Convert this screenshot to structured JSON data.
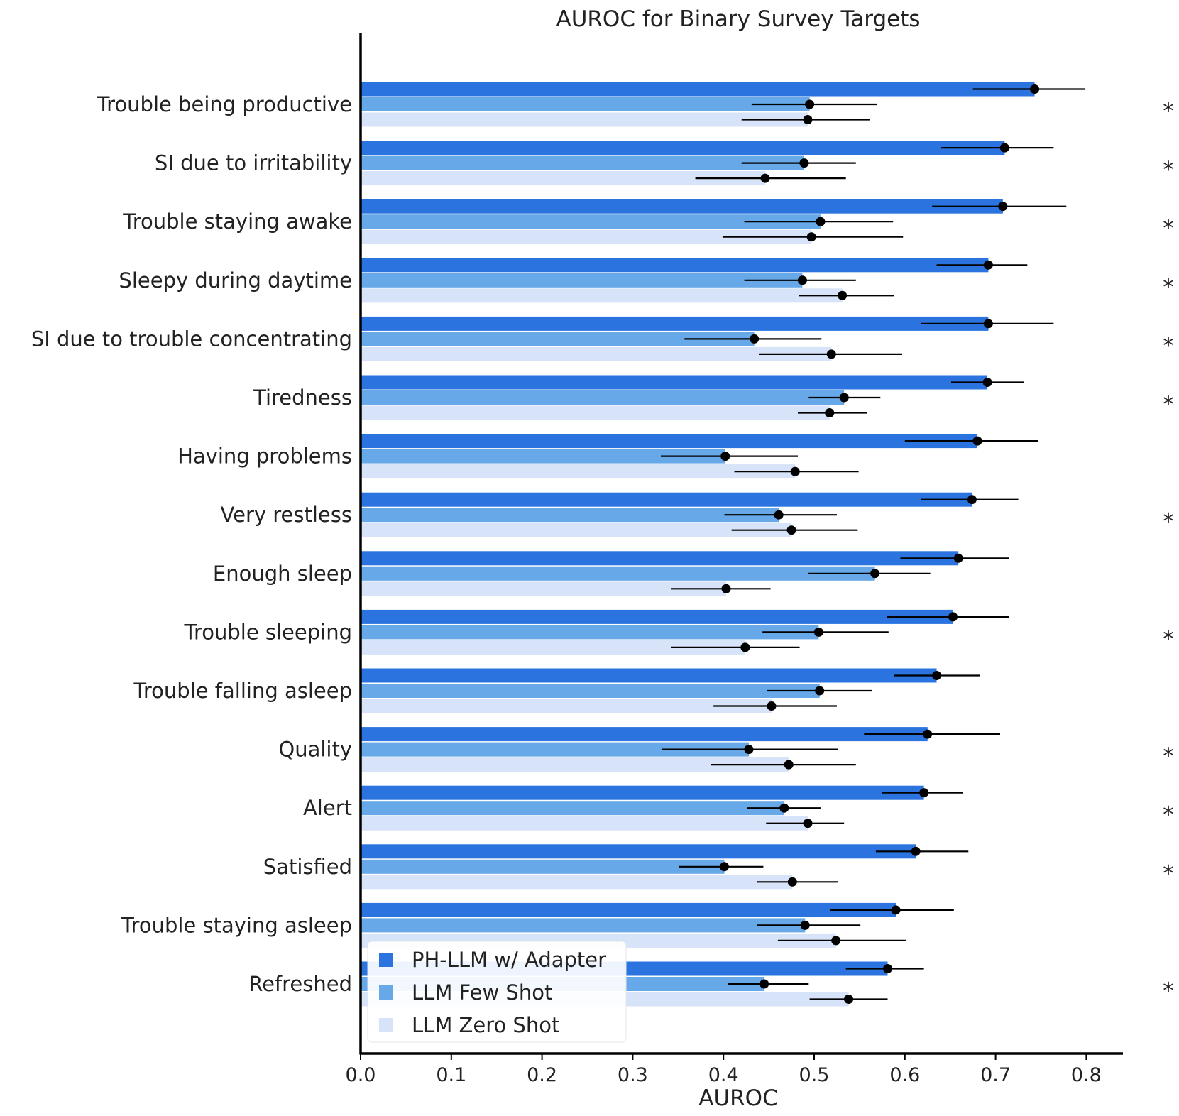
{
  "chart_data": {
    "type": "bar",
    "orientation": "horizontal",
    "title": "AUROC for Binary Survey Targets",
    "xlabel": "AUROC",
    "ylabel": "",
    "xlim": [
      0.0,
      0.84
    ],
    "xticks": [
      "0.0",
      "0.1",
      "0.2",
      "0.3",
      "0.4",
      "0.5",
      "0.6",
      "0.7",
      "0.8"
    ],
    "grid": false,
    "legend_position": "bottom-left",
    "categories": [
      "Trouble being productive",
      "SI due to irritability",
      "Trouble staying awake",
      "Sleepy during daytime",
      "SI due to trouble concentrating",
      "Tiredness",
      "Having problems",
      "Very restless",
      "Enough sleep",
      "Trouble sleeping",
      "Trouble falling asleep",
      "Quality",
      "Alert",
      "Satisfied",
      "Trouble staying asleep",
      "Refreshed"
    ],
    "significance_marker": "*",
    "significant": [
      true,
      true,
      true,
      true,
      true,
      true,
      false,
      true,
      false,
      true,
      false,
      true,
      true,
      true,
      false,
      true
    ],
    "series": [
      {
        "name": "PH-LLM w/ Adapter",
        "color": "#2b74df",
        "values": [
          0.743,
          0.71,
          0.708,
          0.692,
          0.692,
          0.691,
          0.68,
          0.674,
          0.659,
          0.653,
          0.635,
          0.625,
          0.621,
          0.612,
          0.59,
          0.581
        ],
        "ci_low": [
          0.675,
          0.64,
          0.63,
          0.635,
          0.618,
          0.651,
          0.6,
          0.618,
          0.595,
          0.58,
          0.588,
          0.555,
          0.575,
          0.568,
          0.518,
          0.535
        ],
        "ci_high": [
          0.799,
          0.764,
          0.778,
          0.735,
          0.764,
          0.731,
          0.747,
          0.725,
          0.715,
          0.715,
          0.683,
          0.705,
          0.664,
          0.67,
          0.654,
          0.621
        ]
      },
      {
        "name": "LLM Few Shot",
        "color": "#66a8e8",
        "values": [
          0.495,
          0.489,
          0.507,
          0.487,
          0.434,
          0.533,
          0.402,
          0.461,
          0.567,
          0.505,
          0.506,
          0.428,
          0.467,
          0.401,
          0.49,
          0.445
        ],
        "ci_low": [
          0.431,
          0.42,
          0.423,
          0.423,
          0.357,
          0.494,
          0.331,
          0.401,
          0.493,
          0.443,
          0.448,
          0.332,
          0.426,
          0.351,
          0.437,
          0.405
        ],
        "ci_high": [
          0.569,
          0.546,
          0.587,
          0.546,
          0.508,
          0.573,
          0.482,
          0.525,
          0.628,
          0.582,
          0.564,
          0.526,
          0.507,
          0.444,
          0.551,
          0.494
        ]
      },
      {
        "name": "LLM Zero Shot",
        "color": "#d6e3f8",
        "values": [
          0.493,
          0.446,
          0.497,
          0.531,
          0.519,
          0.517,
          0.479,
          0.475,
          0.403,
          0.424,
          0.453,
          0.472,
          0.493,
          0.476,
          0.524,
          0.538
        ],
        "ci_low": [
          0.42,
          0.369,
          0.399,
          0.483,
          0.439,
          0.482,
          0.412,
          0.409,
          0.342,
          0.342,
          0.389,
          0.386,
          0.447,
          0.437,
          0.46,
          0.495
        ],
        "ci_high": [
          0.561,
          0.535,
          0.598,
          0.588,
          0.597,
          0.558,
          0.549,
          0.548,
          0.452,
          0.484,
          0.525,
          0.546,
          0.533,
          0.526,
          0.601,
          0.581
        ]
      }
    ]
  }
}
